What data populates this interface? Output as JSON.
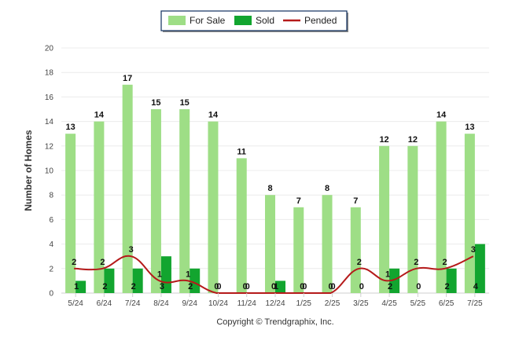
{
  "chart_data": {
    "type": "bar",
    "ylabel": "Number of Homes",
    "xlabel": "",
    "ylim": [
      0,
      20
    ],
    "yticks": [
      0,
      2,
      4,
      6,
      8,
      10,
      12,
      14,
      16,
      18,
      20
    ],
    "categories": [
      "5/24",
      "6/24",
      "7/24",
      "8/24",
      "9/24",
      "10/24",
      "11/24",
      "12/24",
      "1/25",
      "2/25",
      "3/25",
      "4/25",
      "5/25",
      "6/25",
      "7/25"
    ],
    "series": [
      {
        "name": "For Sale",
        "kind": "bar",
        "color": "#9ede86",
        "values": [
          13,
          14,
          17,
          15,
          15,
          14,
          11,
          8,
          7,
          8,
          7,
          12,
          12,
          14,
          13
        ]
      },
      {
        "name": "Sold",
        "kind": "bar",
        "color": "#12a52f",
        "values": [
          1,
          2,
          2,
          3,
          2,
          0,
          0,
          1,
          0,
          0,
          0,
          2,
          0,
          2,
          4
        ]
      },
      {
        "name": "Pended",
        "kind": "line",
        "color": "#b51a1a",
        "values": [
          2,
          2,
          3,
          1,
          1,
          0,
          0,
          0,
          0,
          0,
          2,
          1,
          2,
          2,
          3
        ]
      }
    ],
    "grid": true,
    "legend_position": "top-center",
    "credit": "Copyright © Trendgraphix, Inc."
  }
}
